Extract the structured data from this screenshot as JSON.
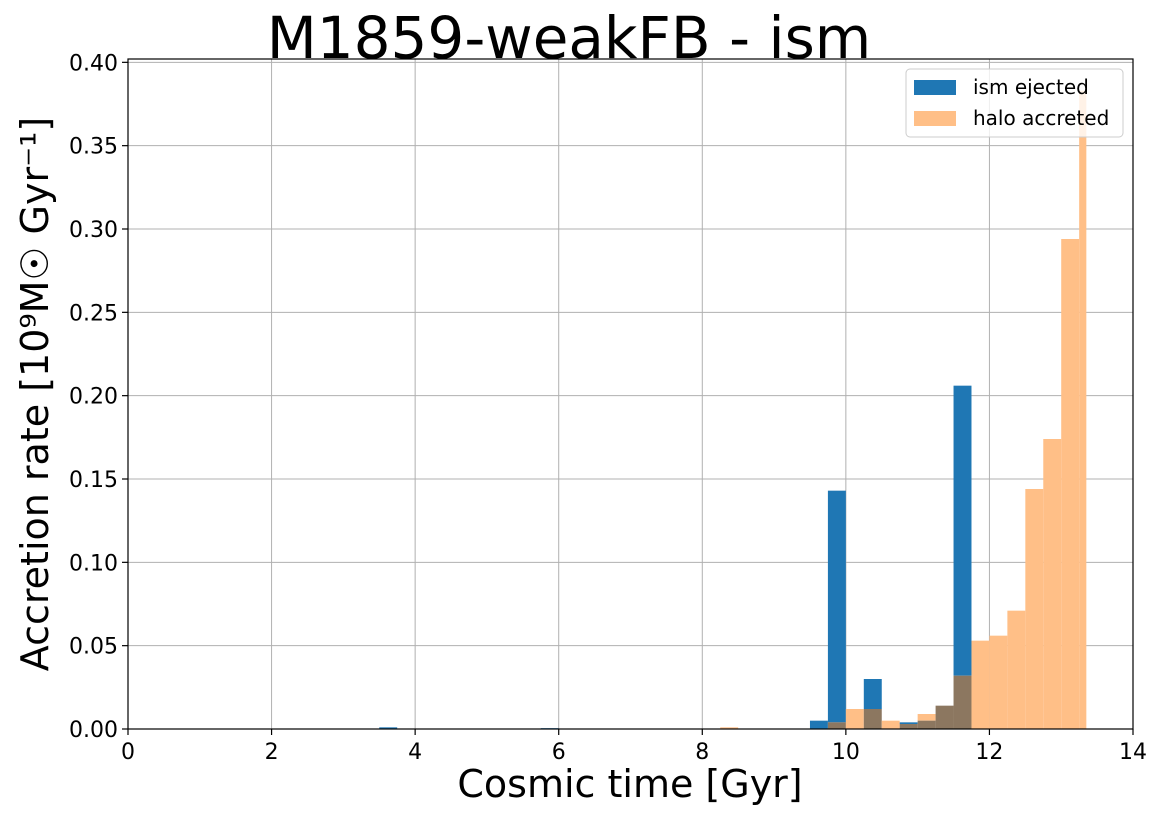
{
  "chart_data": {
    "type": "bar",
    "title": "M1859-weakFB - ism",
    "xlabel": "Cosmic time [Gyr]",
    "ylabel": "Accretion rate [10⁹M☉ Gyr⁻¹]",
    "xlim": [
      0,
      14
    ],
    "ylim": [
      0,
      0.402
    ],
    "xticks": [
      0,
      2,
      4,
      6,
      8,
      10,
      12,
      14
    ],
    "yticks": [
      0.0,
      0.05,
      0.1,
      0.15,
      0.2,
      0.25,
      0.3,
      0.35,
      0.4
    ],
    "ytick_labels": [
      "0.00",
      "0.05",
      "0.10",
      "0.15",
      "0.20",
      "0.25",
      "0.30",
      "0.35",
      "0.40"
    ],
    "grid": true,
    "legend_position": "top-right",
    "bin_edges": [
      0.0,
      0.25,
      0.5,
      0.75,
      1.0,
      1.25,
      1.5,
      1.75,
      2.0,
      2.25,
      2.5,
      2.75,
      3.0,
      3.25,
      3.5,
      3.75,
      4.0,
      4.25,
      4.5,
      4.75,
      5.0,
      5.25,
      5.5,
      5.75,
      6.0,
      6.25,
      6.5,
      6.75,
      7.0,
      7.25,
      7.5,
      7.75,
      8.0,
      8.25,
      8.5,
      8.75,
      9.0,
      9.25,
      9.5,
      9.75,
      10.0,
      10.25,
      10.5,
      10.75,
      11.0,
      11.25,
      11.5,
      11.75,
      12.0,
      12.25,
      12.5,
      12.75,
      13.0,
      13.25,
      13.35
    ],
    "series": [
      {
        "name": "ism ejected",
        "color": "#1f77b4",
        "alpha": 1.0,
        "values": [
          0,
          0,
          0,
          0,
          0,
          0,
          0,
          0,
          0,
          0,
          0,
          0,
          0,
          0,
          0.001,
          0,
          0,
          0,
          0,
          0,
          0,
          0,
          0,
          0.0005,
          0,
          0,
          0,
          0,
          0,
          0,
          0,
          0,
          0,
          0,
          0,
          0,
          0,
          0,
          0.005,
          0.143,
          0,
          0.03,
          0,
          0.004,
          0.005,
          0.014,
          0.206,
          0,
          0,
          0,
          0,
          0,
          0,
          0
        ]
      },
      {
        "name": "halo accreted",
        "color": "#ffbf87",
        "alpha": 1.0,
        "values": [
          0,
          0,
          0,
          0,
          0,
          0,
          0,
          0,
          0,
          0,
          0,
          0,
          0,
          0,
          0,
          0,
          0,
          0,
          0,
          0,
          0,
          0,
          0,
          0,
          0,
          0,
          0,
          0,
          0,
          0,
          0,
          0,
          0,
          0.001,
          0,
          0,
          0,
          0,
          0,
          0.004,
          0.012,
          0.012,
          0.005,
          0.003,
          0.009,
          0.014,
          0.032,
          0.053,
          0.056,
          0.071,
          0.144,
          0.174,
          0.294,
          0.383
        ]
      }
    ],
    "overlap_color": "#8c7760"
  }
}
